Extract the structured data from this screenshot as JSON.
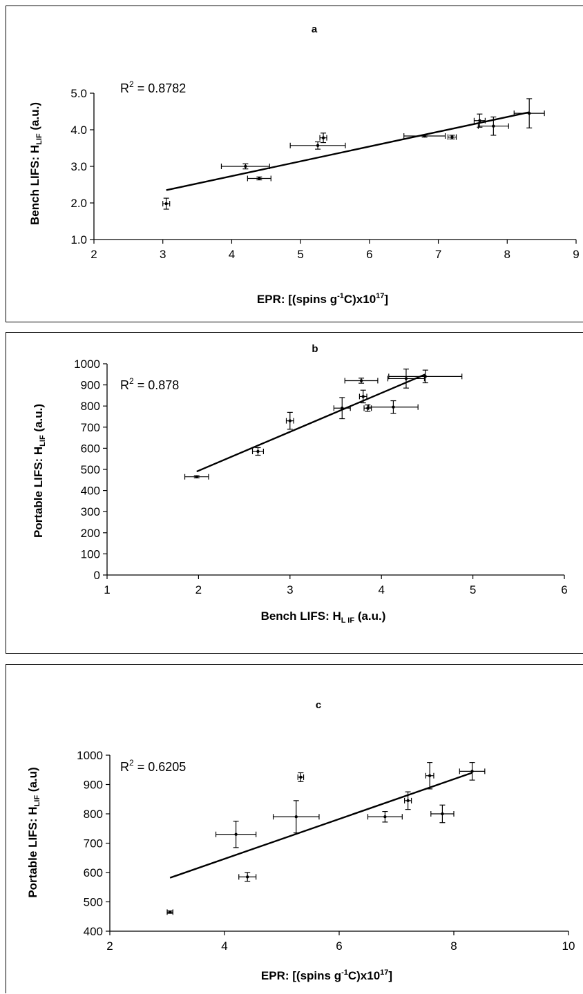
{
  "chart_data": [
    {
      "type": "scatter",
      "title": "a",
      "xlabel": {
        "main": "EPR:  [(spins g",
        "sup1": "-1",
        "mid": "C)x10",
        "sup2": "17",
        "end": "]"
      },
      "ylabel": {
        "main": "Bench LIFS: H",
        "sub": "LIF",
        "end": " (a.u.)"
      },
      "r2": {
        "base": "R",
        "sup": "2",
        "value": " = 0.8782"
      },
      "xlim": [
        2,
        9
      ],
      "ylim": [
        1.0,
        5.0
      ],
      "xticks": [
        "2",
        "3",
        "4",
        "5",
        "6",
        "7",
        "8",
        "9"
      ],
      "yticks": [
        "1.0",
        "2.0",
        "3.0",
        "4.0",
        "5.0"
      ],
      "points": [
        {
          "x": 3.05,
          "y": 1.98,
          "xerr": 0.05,
          "yerr": 0.15
        },
        {
          "x": 4.2,
          "y": 3.0,
          "xerr": 0.35,
          "yerr": 0.07
        },
        {
          "x": 4.4,
          "y": 2.67,
          "xerr": 0.17,
          "yerr": 0.04
        },
        {
          "x": 5.25,
          "y": 3.57,
          "xerr": 0.4,
          "yerr": 0.1
        },
        {
          "x": 5.33,
          "y": 3.78,
          "xerr": 0.05,
          "yerr": 0.13
        },
        {
          "x": 6.8,
          "y": 3.83,
          "xerr": 0.3,
          "yerr": 0.03
        },
        {
          "x": 7.2,
          "y": 3.8,
          "xerr": 0.06,
          "yerr": 0.05
        },
        {
          "x": 7.6,
          "y": 4.25,
          "xerr": 0.08,
          "yerr": 0.18
        },
        {
          "x": 7.8,
          "y": 4.1,
          "xerr": 0.22,
          "yerr": 0.25
        },
        {
          "x": 8.32,
          "y": 4.45,
          "xerr": 0.22,
          "yerr": 0.4
        }
      ],
      "trendline": {
        "x": [
          3.05,
          8.32
        ],
        "y": [
          2.35,
          4.48
        ]
      }
    },
    {
      "type": "scatter",
      "title": "b",
      "xlabel": {
        "main": "Bench LIFS: H",
        "sub": "L IF",
        "end": " (a.u.)"
      },
      "ylabel": {
        "main": "Portable LIFS: H",
        "sub": "LIF",
        "end": " (a.u.)"
      },
      "r2": {
        "base": "R",
        "sup": "2",
        "value": " = 0.878"
      },
      "xlim": [
        1,
        6
      ],
      "ylim": [
        0,
        1000
      ],
      "xticks": [
        "1",
        "2",
        "3",
        "4",
        "5",
        "6"
      ],
      "yticks": [
        "0",
        "100",
        "200",
        "300",
        "400",
        "500",
        "600",
        "700",
        "800",
        "900",
        "1000"
      ],
      "points": [
        {
          "x": 1.98,
          "y": 465,
          "xerr": 0.13,
          "yerr": 5
        },
        {
          "x": 2.65,
          "y": 585,
          "xerr": 0.06,
          "yerr": 18
        },
        {
          "x": 3.0,
          "y": 730,
          "xerr": 0.04,
          "yerr": 40
        },
        {
          "x": 3.57,
          "y": 790,
          "xerr": 0.09,
          "yerr": 50
        },
        {
          "x": 3.78,
          "y": 920,
          "xerr": 0.18,
          "yerr": 12
        },
        {
          "x": 3.8,
          "y": 845,
          "xerr": 0.04,
          "yerr": 30
        },
        {
          "x": 3.85,
          "y": 790,
          "xerr": 0.04,
          "yerr": 15
        },
        {
          "x": 4.13,
          "y": 795,
          "xerr": 0.27,
          "yerr": 30
        },
        {
          "x": 4.27,
          "y": 930,
          "xerr": 0.2,
          "yerr": 45
        },
        {
          "x": 4.48,
          "y": 940,
          "xerr": 0.4,
          "yerr": 30
        }
      ],
      "trendline": {
        "x": [
          1.98,
          4.48
        ],
        "y": [
          490,
          950
        ]
      }
    },
    {
      "type": "scatter",
      "title": "c",
      "xlabel": {
        "main": "EPR:  [(spins g",
        "sup1": "-1",
        "mid": "C)x10",
        "sup2": "17",
        "end": "]"
      },
      "ylabel": {
        "main": "Portable LIFS: H",
        "sub": "LIF",
        "end": " (a.u)"
      },
      "r2": {
        "base": "R",
        "sup": "2",
        "value": " = 0.6205"
      },
      "xlim": [
        2,
        10
      ],
      "ylim": [
        400,
        1000
      ],
      "xticks": [
        "2",
        "4",
        "6",
        "8",
        "10"
      ],
      "yticks": [
        "400",
        "500",
        "600",
        "700",
        "800",
        "900",
        "1000"
      ],
      "points": [
        {
          "x": 3.05,
          "y": 465,
          "xerr": 0.05,
          "yerr": 4
        },
        {
          "x": 4.2,
          "y": 730,
          "xerr": 0.35,
          "yerr": 45
        },
        {
          "x": 4.4,
          "y": 585,
          "xerr": 0.15,
          "yerr": 15
        },
        {
          "x": 5.25,
          "y": 790,
          "xerr": 0.4,
          "yerr": 55
        },
        {
          "x": 5.33,
          "y": 925,
          "xerr": 0.05,
          "yerr": 15
        },
        {
          "x": 6.8,
          "y": 790,
          "xerr": 0.3,
          "yerr": 18
        },
        {
          "x": 7.2,
          "y": 845,
          "xerr": 0.06,
          "yerr": 30
        },
        {
          "x": 7.58,
          "y": 930,
          "xerr": 0.07,
          "yerr": 45
        },
        {
          "x": 7.8,
          "y": 800,
          "xerr": 0.2,
          "yerr": 30
        },
        {
          "x": 8.32,
          "y": 945,
          "xerr": 0.22,
          "yerr": 30
        }
      ],
      "trendline": {
        "x": [
          3.05,
          8.32
        ],
        "y": [
          582,
          940
        ]
      }
    }
  ]
}
